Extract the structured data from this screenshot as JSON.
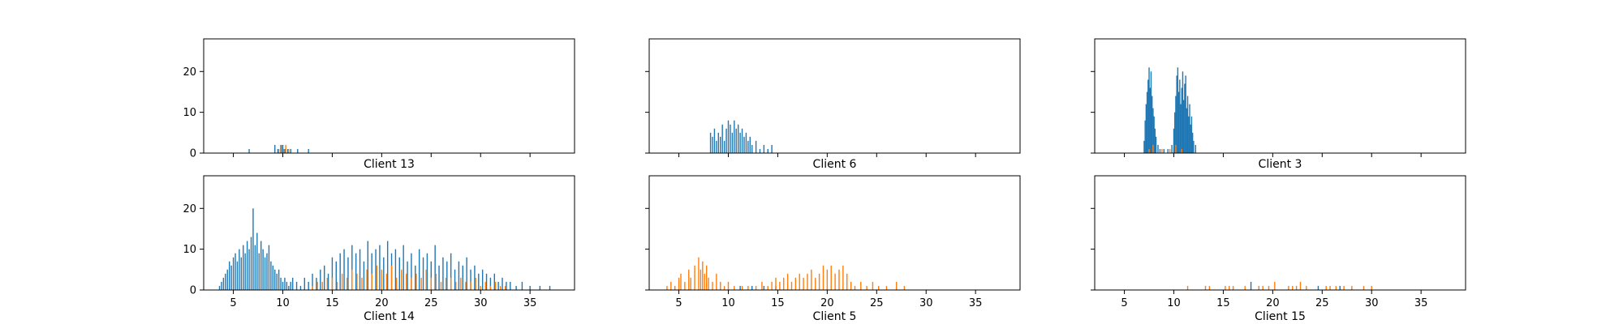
{
  "chart_data": [
    {
      "type": "bar",
      "title": "",
      "xlabel": "Client 13",
      "ylabel": "",
      "xlim": [
        2,
        39.5
      ],
      "ylim": [
        0,
        28
      ],
      "xticks": [
        5,
        10,
        15,
        20,
        25,
        30,
        35
      ],
      "yticks": [
        0,
        10,
        20
      ],
      "series": [
        {
          "color": "#1f77b4",
          "x": [
            6.6,
            9.2,
            9.5,
            9.8,
            10.0,
            10.2,
            10.5,
            10.8,
            11.5,
            12.6
          ],
          "values": [
            1,
            2,
            1,
            2,
            2,
            1,
            1,
            1,
            1,
            1
          ]
        },
        {
          "color": "#ff7f0e",
          "x": [
            9.6,
            9.9,
            10.1,
            10.3,
            10.6
          ],
          "values": [
            1,
            2,
            1,
            2,
            1
          ]
        }
      ]
    },
    {
      "type": "bar",
      "title": "",
      "xlabel": "Client 6",
      "ylabel": "",
      "xlim": [
        2,
        39.5
      ],
      "ylim": [
        0,
        28
      ],
      "xticks": [
        5,
        10,
        15,
        20,
        25,
        30,
        35
      ],
      "yticks": [
        0,
        10,
        20
      ],
      "series": [
        {
          "color": "#1f77b4",
          "x": [
            8.2,
            8.4,
            8.6,
            8.8,
            9.0,
            9.2,
            9.4,
            9.6,
            9.8,
            10.0,
            10.2,
            10.4,
            10.6,
            10.8,
            11.0,
            11.2,
            11.4,
            11.6,
            11.8,
            12.0,
            12.2,
            12.4,
            12.8,
            13.2,
            13.6,
            14.0,
            14.4
          ],
          "values": [
            5,
            4,
            6,
            3,
            5,
            4,
            7,
            3,
            6,
            8,
            7,
            5,
            8,
            6,
            7,
            5,
            6,
            4,
            5,
            3,
            4,
            2,
            3,
            1,
            2,
            1,
            2
          ]
        }
      ]
    },
    {
      "type": "bar",
      "title": "",
      "xlabel": "Client 3",
      "ylabel": "",
      "xlim": [
        2,
        39.5
      ],
      "ylim": [
        0,
        28
      ],
      "xticks": [
        5,
        10,
        15,
        20,
        25,
        30,
        35
      ],
      "yticks": [
        0,
        10,
        20
      ],
      "series": [
        {
          "color": "#1f77b4",
          "x": [
            7.0,
            7.1,
            7.2,
            7.3,
            7.4,
            7.5,
            7.6,
            7.7,
            7.8,
            7.9,
            8.0,
            8.1,
            8.2,
            8.4,
            8.6,
            9.0,
            9.4,
            9.8,
            10.0,
            10.1,
            10.2,
            10.3,
            10.4,
            10.5,
            10.6,
            10.7,
            10.8,
            10.9,
            11.0,
            11.1,
            11.2,
            11.3,
            11.4,
            11.5,
            11.6,
            11.7,
            11.8,
            11.9,
            12.0,
            12.2
          ],
          "values": [
            3,
            8,
            12,
            15,
            18,
            21,
            16,
            20,
            14,
            11,
            9,
            6,
            4,
            2,
            1,
            1,
            1,
            2,
            6,
            10,
            14,
            19,
            21,
            15,
            18,
            12,
            16,
            20,
            13,
            17,
            19,
            11,
            14,
            9,
            12,
            7,
            9,
            5,
            3,
            2
          ]
        },
        {
          "color": "#ff7f0e",
          "x": [
            7.5,
            7.9,
            8.8,
            9.6,
            10.2,
            10.8
          ],
          "values": [
            1,
            2,
            1,
            1,
            2,
            1
          ]
        }
      ]
    },
    {
      "type": "bar",
      "title": "",
      "xlabel": "Client 14",
      "ylabel": "",
      "xlim": [
        2,
        39.5
      ],
      "ylim": [
        0,
        28
      ],
      "xticks": [
        5,
        10,
        15,
        20,
        25,
        30,
        35
      ],
      "yticks": [
        0,
        10,
        20
      ],
      "series": [
        {
          "color": "#1f77b4",
          "x": [
            3.6,
            3.8,
            4.0,
            4.2,
            4.4,
            4.6,
            4.8,
            5.0,
            5.2,
            5.4,
            5.6,
            5.8,
            6.0,
            6.2,
            6.4,
            6.6,
            6.8,
            7.0,
            7.2,
            7.4,
            7.6,
            7.8,
            8.0,
            8.2,
            8.4,
            8.6,
            8.8,
            9.0,
            9.2,
            9.4,
            9.6,
            9.8,
            10.0,
            10.2,
            10.4,
            10.6,
            10.8,
            11.0,
            11.4,
            11.8,
            12.2,
            12.6,
            13.0,
            13.4,
            13.8,
            14.2,
            14.6,
            15.0,
            15.4,
            15.8,
            16.2,
            16.6,
            17.0,
            17.4,
            17.8,
            18.2,
            18.6,
            19.0,
            19.4,
            19.8,
            20.2,
            20.6,
            21.0,
            21.4,
            21.8,
            22.2,
            22.6,
            23.0,
            23.4,
            23.8,
            24.2,
            24.6,
            25.0,
            25.4,
            25.8,
            26.2,
            26.6,
            27.0,
            27.4,
            27.8,
            28.2,
            28.6,
            29.0,
            29.4,
            29.8,
            30.2,
            30.6,
            31.0,
            31.4,
            31.8,
            32.2,
            32.6,
            33.0,
            33.6,
            34.2,
            35.0,
            36.0,
            37.0
          ],
          "values": [
            1,
            2,
            3,
            4,
            5,
            7,
            6,
            8,
            9,
            7,
            10,
            8,
            11,
            9,
            12,
            10,
            13,
            20,
            11,
            14,
            9,
            12,
            10,
            8,
            9,
            11,
            7,
            6,
            5,
            4,
            5,
            3,
            2,
            3,
            2,
            1,
            2,
            3,
            2,
            1,
            3,
            2,
            4,
            3,
            5,
            6,
            4,
            8,
            7,
            9,
            10,
            8,
            11,
            9,
            10,
            7,
            12,
            9,
            10,
            11,
            8,
            12,
            9,
            10,
            8,
            11,
            7,
            9,
            6,
            10,
            8,
            9,
            7,
            11,
            6,
            8,
            7,
            9,
            5,
            7,
            6,
            8,
            5,
            6,
            4,
            5,
            4,
            3,
            4,
            2,
            3,
            2,
            2,
            1,
            2,
            1,
            1,
            1
          ]
        },
        {
          "color": "#ff7f0e",
          "x": [
            13.0,
            13.5,
            14.0,
            14.5,
            15.0,
            15.5,
            16.0,
            16.5,
            17.0,
            17.5,
            18.0,
            18.5,
            19.0,
            19.5,
            20.0,
            20.5,
            21.0,
            21.5,
            22.0,
            22.5,
            23.0,
            23.5,
            24.0,
            24.5,
            25.0,
            25.5,
            26.0,
            26.5,
            27.0,
            27.5,
            28.0,
            28.5,
            29.0,
            29.5,
            30.0,
            30.5,
            31.0,
            31.5,
            32.0,
            32.5
          ],
          "values": [
            1,
            2,
            2,
            3,
            3,
            2,
            4,
            3,
            5,
            4,
            3,
            5,
            4,
            6,
            5,
            4,
            6,
            3,
            5,
            4,
            3,
            4,
            3,
            5,
            3,
            4,
            2,
            3,
            3,
            2,
            3,
            2,
            2,
            3,
            1,
            2,
            1,
            2,
            1,
            1
          ]
        }
      ]
    },
    {
      "type": "bar",
      "title": "",
      "xlabel": "Client 5",
      "ylabel": "",
      "xlim": [
        2,
        39.5
      ],
      "ylim": [
        0,
        28
      ],
      "xticks": [
        5,
        10,
        15,
        20,
        25,
        30,
        35
      ],
      "yticks": [
        0,
        10,
        20
      ],
      "series": [
        {
          "color": "#1f77b4",
          "x": [
            11.2,
            12.4,
            13.6,
            14.8
          ],
          "values": [
            1,
            1,
            1,
            1
          ]
        },
        {
          "color": "#ff7f0e",
          "x": [
            3.8,
            4.2,
            4.6,
            5.0,
            5.2,
            5.6,
            6.0,
            6.2,
            6.6,
            7.0,
            7.2,
            7.4,
            7.6,
            7.8,
            8.0,
            8.4,
            8.8,
            9.2,
            9.6,
            10.0,
            10.6,
            11.4,
            12.0,
            12.8,
            13.4,
            14.0,
            14.4,
            14.8,
            15.2,
            15.6,
            16.0,
            16.4,
            16.8,
            17.2,
            17.6,
            18.0,
            18.4,
            18.8,
            19.2,
            19.6,
            20.0,
            20.4,
            20.8,
            21.2,
            21.6,
            22.0,
            22.4,
            22.8,
            23.4,
            24.0,
            24.6,
            25.2,
            26.0,
            27.0,
            27.8
          ],
          "values": [
            1,
            2,
            1,
            3,
            4,
            2,
            5,
            3,
            6,
            8,
            5,
            7,
            4,
            6,
            3,
            2,
            4,
            2,
            1,
            2,
            1,
            1,
            1,
            1,
            2,
            1,
            2,
            3,
            2,
            3,
            4,
            2,
            3,
            4,
            3,
            4,
            5,
            3,
            4,
            6,
            5,
            6,
            4,
            5,
            6,
            4,
            2,
            1,
            2,
            1,
            2,
            1,
            1,
            2,
            1
          ]
        }
      ]
    },
    {
      "type": "bar",
      "title": "",
      "xlabel": "Client 15",
      "ylabel": "",
      "xlim": [
        2,
        39.5
      ],
      "ylim": [
        0,
        28
      ],
      "xticks": [
        5,
        10,
        15,
        20,
        25,
        30,
        35
      ],
      "yticks": [
        0,
        10,
        20
      ],
      "series": [
        {
          "color": "#1f77b4",
          "x": [
            17.8,
            24.6,
            26.8
          ],
          "values": [
            2,
            1,
            1
          ]
        },
        {
          "color": "#ff7f0e",
          "x": [
            11.4,
            13.2,
            13.6,
            15.2,
            15.6,
            16.0,
            17.2,
            18.6,
            19.0,
            19.6,
            20.2,
            21.6,
            22.0,
            22.4,
            22.8,
            23.4,
            25.4,
            25.8,
            26.4,
            27.2,
            28.0,
            29.2,
            30.0
          ],
          "values": [
            1,
            1,
            1,
            1,
            1,
            1,
            1,
            1,
            1,
            1,
            2,
            1,
            1,
            1,
            2,
            1,
            1,
            1,
            1,
            1,
            1,
            1,
            1
          ]
        }
      ]
    }
  ]
}
